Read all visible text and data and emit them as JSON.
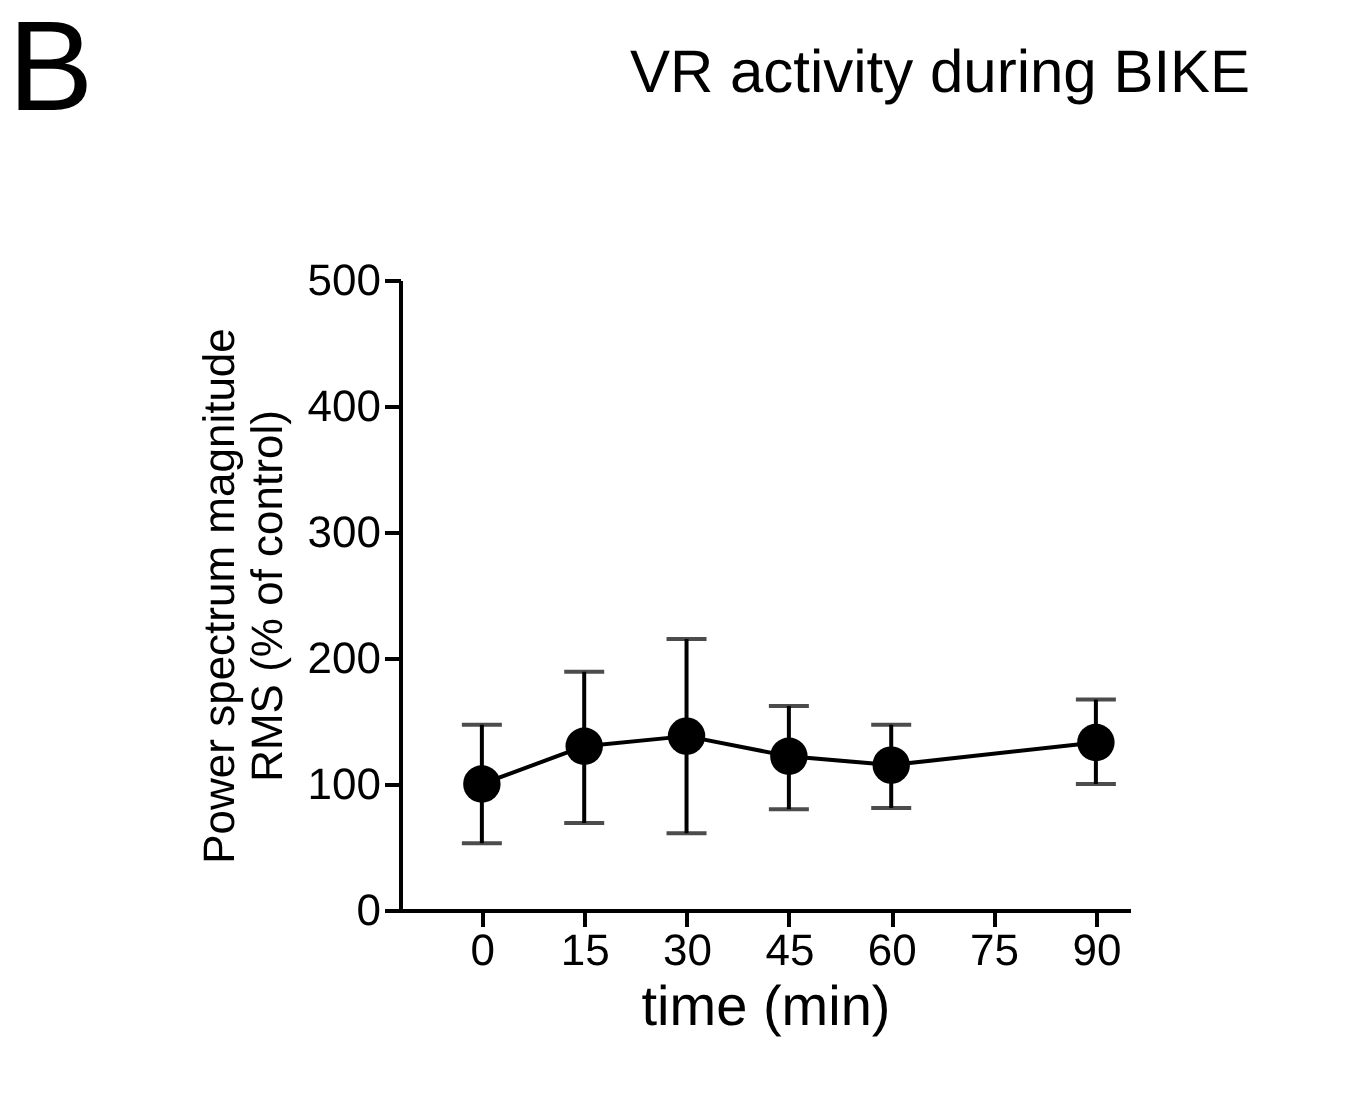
{
  "chart_data": {
    "type": "line",
    "title": "VR activity during BIKE",
    "annotations": [
      "B"
    ],
    "xlabel": "time (min)",
    "ylabel": "Power spectrum magnitude RMS (% of control)",
    "x": [
      0,
      15,
      30,
      45,
      60,
      90
    ],
    "series": [
      {
        "color": "#000000",
        "values": [
          100,
          130,
          138,
          122,
          115,
          133
        ],
        "errors": [
          [
            53,
            147
          ],
          [
            69,
            189
          ],
          [
            61,
            215
          ],
          [
            80,
            162
          ],
          [
            81,
            147
          ],
          [
            100,
            167
          ]
        ]
      }
    ],
    "xlim": [
      -12,
      95
    ],
    "xticks": [
      0,
      15,
      30,
      45,
      60,
      75,
      90
    ],
    "ylim": [
      0,
      500
    ],
    "yticks": [
      0,
      100,
      200,
      300,
      400,
      500
    ],
    "marker": "circle",
    "line_style": "solid",
    "grid": false
  }
}
